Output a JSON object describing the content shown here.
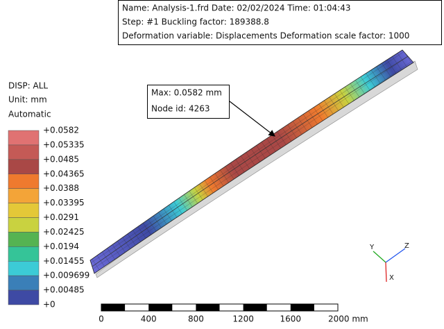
{
  "info": {
    "lines": [
      "Name: Analysis-1.frd   Date: 02/02/2024   Time: 01:04:43",
      "Step: #1   Buckling factor: 189388.8",
      "Deformation variable: Displacements   Deformation scale factor: 1000"
    ]
  },
  "legend": {
    "title_lines": [
      "DISP: ALL",
      "Unit: mm",
      "Automatic"
    ],
    "labels": [
      "+0.0582",
      "+0.05335",
      "+0.0485",
      "+0.04365",
      "+0.0388",
      "+0.03395",
      "+0.0291",
      "+0.02425",
      "+0.0194",
      "+0.01455",
      "+0.009699",
      "+0.00485",
      "+0"
    ],
    "colors": [
      "#e07272",
      "#c45a56",
      "#a94846",
      "#ef7a2e",
      "#f3a438",
      "#e4c838",
      "#c9d240",
      "#55b352",
      "#35c498",
      "#3ccbd6",
      "#3a7fb8",
      "#3e4aa4",
      "#6c6ad8"
    ]
  },
  "annotation": {
    "lines": [
      "Max: 0.0582 mm",
      "Node id: 4263"
    ]
  },
  "scale_bar": {
    "labels": [
      "0",
      "400",
      "800",
      "1200",
      "1600",
      "2000 mm"
    ]
  },
  "triad": {
    "y": "Y",
    "z": "Z",
    "x": "X"
  }
}
